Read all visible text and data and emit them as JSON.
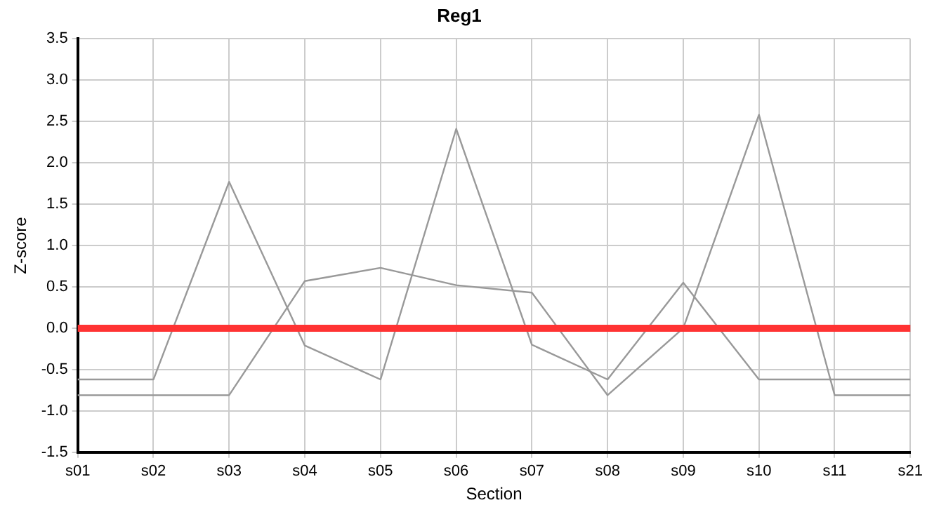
{
  "chart_data": {
    "type": "line",
    "title": "Reg1",
    "xlabel": "Section",
    "ylabel": "Z-score",
    "categories": [
      "s01",
      "s02",
      "s03",
      "s04",
      "s05",
      "s06",
      "s07",
      "s08",
      "s09",
      "s10",
      "s11",
      "s21"
    ],
    "series": [
      {
        "color": "#999999",
        "values": [
          -0.62,
          -0.62,
          1.77,
          -0.21,
          -0.62,
          2.41,
          -0.2,
          -0.62,
          0.55,
          -0.62,
          -0.62,
          -0.62
        ]
      },
      {
        "color": "#999999",
        "values": [
          -0.81,
          -0.81,
          -0.81,
          0.57,
          0.73,
          0.52,
          0.43,
          -0.81,
          0.0,
          2.58,
          -0.81,
          -0.81
        ]
      }
    ],
    "ylim": [
      -1.5,
      3.5
    ],
    "yticks": [
      {
        "value": -1.5,
        "label": "-1.5"
      },
      {
        "value": -1,
        "label": "-1.0"
      },
      {
        "value": -0.5,
        "label": "-0.5"
      },
      {
        "value": 0,
        "label": "0.0"
      },
      {
        "value": 0.5,
        "label": "0.5"
      },
      {
        "value": 1,
        "label": "1.0"
      },
      {
        "value": 1.5,
        "label": "1.5"
      },
      {
        "value": 2,
        "label": "2.0"
      },
      {
        "value": 2.5,
        "label": "2.5"
      },
      {
        "value": 3,
        "label": "3.0"
      },
      {
        "value": 3.5,
        "label": "3.5"
      }
    ],
    "ref_lines": [
      {
        "axis": "y",
        "value": 0,
        "color": "#ff3333"
      }
    ],
    "grid": true,
    "legend": false,
    "marker": "none",
    "line_style": "solid"
  }
}
